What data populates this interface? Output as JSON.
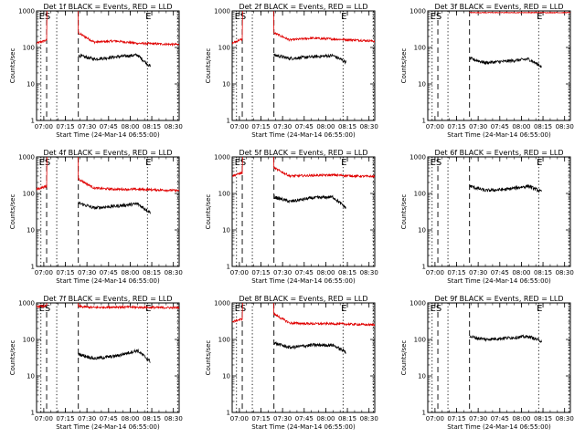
{
  "chart_data": {
    "type": "line",
    "grid_layout": "3x3",
    "ylabel": "Counts/sec",
    "xlabel": "Start Time (24-Mar-14 06:55:00)",
    "x_start": "06:55",
    "x_end": "08:34",
    "x_ticks": [
      "07:00",
      "07:15",
      "07:30",
      "07:45",
      "08:00",
      "08:15",
      "08:30"
    ],
    "ylim": [
      1,
      1000
    ],
    "y_scale": "log",
    "y_ticks": [
      "1",
      "10",
      "100",
      "1000"
    ],
    "event_markers": [
      {
        "label": "E",
        "time": "06:58",
        "style": "dotted"
      },
      {
        "label": "S",
        "time": "07:02",
        "style": "dashed"
      },
      {
        "label": "",
        "time": "07:09",
        "style": "dotted"
      },
      {
        "label": "",
        "time": "07:24",
        "style": "dashed"
      },
      {
        "label": "E",
        "time": "08:12",
        "style": "dotted"
      },
      {
        "label": "",
        "time": "08:33",
        "style": "dotted"
      }
    ],
    "colors": {
      "events": "#000000",
      "lld": "#e00000"
    },
    "panels": [
      {
        "title": "Det 1f BLACK = Events, RED = LLD",
        "events": {
          "x": [
            "07:24",
            "07:35",
            "07:50",
            "08:05",
            "08:14"
          ],
          "y": [
            60,
            48,
            55,
            62,
            30
          ]
        },
        "lld": {
          "x": [
            "06:55",
            "07:00",
            "07:24",
            "07:35",
            "07:50",
            "08:05",
            "08:20",
            "08:34"
          ],
          "y": [
            130,
            150,
            250,
            140,
            150,
            130,
            125,
            120
          ]
        }
      },
      {
        "title": "Det 2f BLACK = Events, RED = LLD",
        "events": {
          "x": [
            "07:24",
            "07:35",
            "07:50",
            "08:05",
            "08:14"
          ],
          "y": [
            62,
            50,
            55,
            60,
            40
          ]
        },
        "lld": {
          "x": [
            "06:55",
            "07:00",
            "07:24",
            "07:35",
            "07:50",
            "08:05",
            "08:20",
            "08:34"
          ],
          "y": [
            130,
            160,
            250,
            160,
            180,
            170,
            160,
            150
          ]
        }
      },
      {
        "title": "Det 3f BLACK = Events, RED = LLD",
        "events": {
          "x": [
            "07:24",
            "07:35",
            "07:50",
            "08:05",
            "08:14"
          ],
          "y": [
            50,
            38,
            42,
            48,
            30
          ]
        },
        "lld": {
          "x": [
            "07:24",
            "08:34"
          ],
          "y": [
            900,
            900
          ]
        }
      },
      {
        "title": "Det 4f BLACK = Events, RED = LLD",
        "events": {
          "x": [
            "07:24",
            "07:35",
            "07:50",
            "08:05",
            "08:14"
          ],
          "y": [
            55,
            40,
            45,
            52,
            30
          ]
        },
        "lld": {
          "x": [
            "06:55",
            "07:00",
            "07:24",
            "07:35",
            "07:50",
            "08:05",
            "08:20",
            "08:34"
          ],
          "y": [
            130,
            150,
            250,
            140,
            130,
            130,
            125,
            120
          ]
        }
      },
      {
        "title": "Det 5f BLACK = Events, RED = LLD",
        "events": {
          "x": [
            "07:24",
            "07:35",
            "07:50",
            "08:05",
            "08:14"
          ],
          "y": [
            80,
            60,
            75,
            80,
            40
          ]
        },
        "lld": {
          "x": [
            "06:55",
            "07:00",
            "07:24",
            "07:35",
            "07:50",
            "08:05",
            "08:20",
            "08:34"
          ],
          "y": [
            300,
            350,
            500,
            300,
            310,
            320,
            300,
            290
          ]
        }
      },
      {
        "title": "Det 6f BLACK = Events, RED = LLD",
        "events": {
          "x": [
            "07:24",
            "07:35",
            "07:50",
            "08:05",
            "08:14"
          ],
          "y": [
            160,
            120,
            130,
            160,
            110
          ]
        },
        "lld": {
          "x": [],
          "y": []
        }
      },
      {
        "title": "Det 7f BLACK = Events, RED = LLD",
        "events": {
          "x": [
            "07:24",
            "07:35",
            "07:50",
            "08:05",
            "08:14"
          ],
          "y": [
            40,
            30,
            35,
            50,
            25
          ]
        },
        "lld": {
          "x": [
            "06:55",
            "07:00",
            "07:24",
            "07:35",
            "07:50",
            "08:05",
            "08:20",
            "08:34"
          ],
          "y": [
            800,
            820,
            800,
            750,
            780,
            760,
            750,
            740
          ]
        }
      },
      {
        "title": "Det 8f BLACK = Events, RED = LLD",
        "events": {
          "x": [
            "07:24",
            "07:35",
            "07:50",
            "08:05",
            "08:14"
          ],
          "y": [
            80,
            60,
            70,
            70,
            45
          ]
        },
        "lld": {
          "x": [
            "06:55",
            "07:00",
            "07:24",
            "07:35",
            "07:50",
            "08:05",
            "08:20",
            "08:34"
          ],
          "y": [
            300,
            350,
            500,
            280,
            270,
            270,
            260,
            250
          ]
        }
      },
      {
        "title": "Det 9f BLACK = Events, RED = LLD",
        "events": {
          "x": [
            "07:24",
            "07:35",
            "07:50",
            "08:05",
            "08:14"
          ],
          "y": [
            120,
            100,
            110,
            120,
            90
          ]
        },
        "lld": {
          "x": [],
          "y": []
        }
      }
    ]
  }
}
